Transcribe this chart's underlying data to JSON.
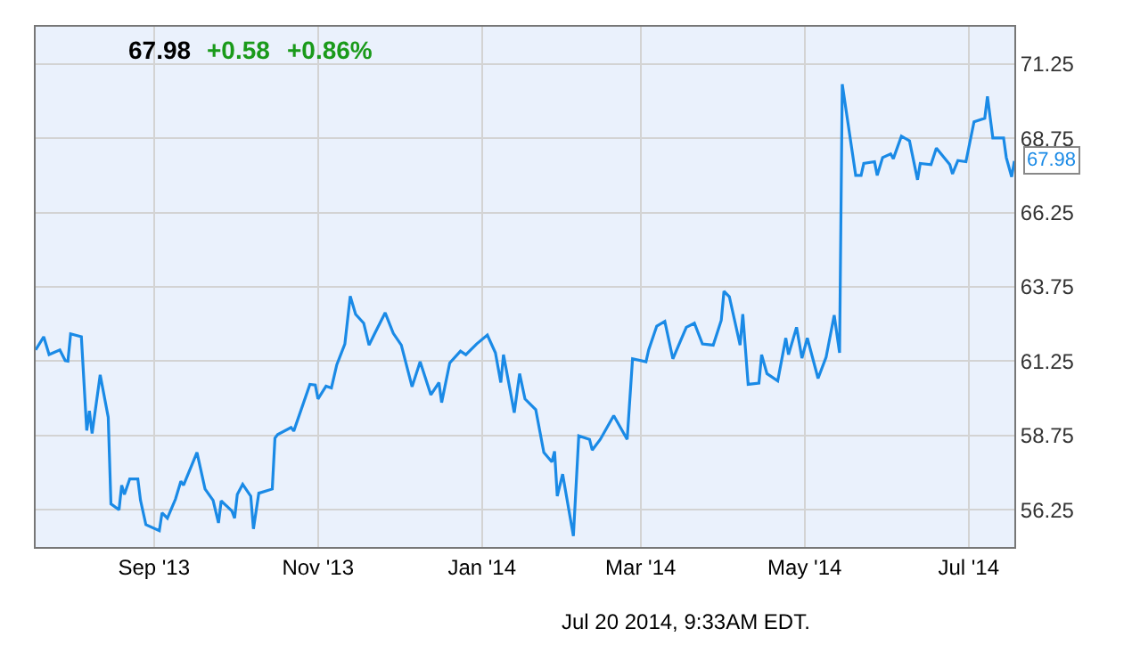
{
  "chart_data": {
    "type": "line",
    "color": "#1a8ae6",
    "grid": true,
    "xlim": [
      "2013-07-19",
      "2014-07-18"
    ],
    "xticks": [
      {
        "value": "2013-09-01",
        "label": "Sep '13"
      },
      {
        "value": "2013-11-01",
        "label": "Nov '13"
      },
      {
        "value": "2014-01-01",
        "label": "Jan '14"
      },
      {
        "value": "2014-03-01",
        "label": "Mar '14"
      },
      {
        "value": "2014-05-01",
        "label": "May '14"
      },
      {
        "value": "2014-07-01",
        "label": "Jul '14"
      }
    ],
    "ylim": [
      55,
      72.5
    ],
    "yticks": [
      56.25,
      58.75,
      61.25,
      63.75,
      66.25,
      68.75,
      71.25
    ],
    "annotations": [
      "67.98",
      "+0.58",
      "+0.86%",
      {
        "text": "67.98",
        "x": "2014-07-18",
        "y": 67.98
      },
      "Jul 20 2014, 9:33AM EDT."
    ],
    "x": [
      "2013-07-19",
      "2013-07-22",
      "2013-07-24",
      "2013-07-28",
      "2013-07-30",
      "2013-07-31",
      "2013-08-01",
      "2013-08-05",
      "2013-08-07",
      "2013-08-08",
      "2013-08-09",
      "2013-08-12",
      "2013-08-15",
      "2013-08-16",
      "2013-08-19",
      "2013-08-20",
      "2013-08-21",
      "2013-08-23",
      "2013-08-26",
      "2013-08-27",
      "2013-08-29",
      "2013-09-03",
      "2013-09-04",
      "2013-09-06",
      "2013-09-09",
      "2013-09-11",
      "2013-09-12",
      "2013-09-17",
      "2013-09-20",
      "2013-09-23",
      "2013-09-25",
      "2013-09-26",
      "2013-09-30",
      "2013-10-01",
      "2013-10-02",
      "2013-10-04",
      "2013-10-07",
      "2013-10-08",
      "2013-10-10",
      "2013-10-15",
      "2013-10-16",
      "2013-10-17",
      "2013-10-22",
      "2013-10-23",
      "2013-10-29",
      "2013-10-31",
      "2013-11-01",
      "2013-11-04",
      "2013-11-06",
      "2013-11-08",
      "2013-11-11",
      "2013-11-13",
      "2013-11-15",
      "2013-11-18",
      "2013-11-20",
      "2013-11-22",
      "2013-11-26",
      "2013-11-29",
      "2013-12-02",
      "2013-12-06",
      "2013-12-09",
      "2013-12-13",
      "2013-12-16",
      "2013-12-17",
      "2013-12-20",
      "2013-12-24",
      "2013-12-26",
      "2013-12-30",
      "2014-01-03",
      "2014-01-06",
      "2014-01-08",
      "2014-01-09",
      "2014-01-13",
      "2014-01-15",
      "2014-01-17",
      "2014-01-21",
      "2014-01-24",
      "2014-01-27",
      "2014-01-28",
      "2014-01-29",
      "2014-01-31",
      "2014-02-04",
      "2014-02-06",
      "2014-02-10",
      "2014-02-11",
      "2014-02-14",
      "2014-02-19",
      "2014-02-24",
      "2014-02-26",
      "2014-03-03",
      "2014-03-04",
      "2014-03-07",
      "2014-03-10",
      "2014-03-13",
      "2014-03-18",
      "2014-03-21",
      "2014-03-24",
      "2014-03-28",
      "2014-03-31",
      "2014-04-01",
      "2014-04-03",
      "2014-04-07",
      "2014-04-08",
      "2014-04-10",
      "2014-04-14",
      "2014-04-15",
      "2014-04-17",
      "2014-04-21",
      "2014-04-24",
      "2014-04-25",
      "2014-04-28",
      "2014-04-30",
      "2014-05-02",
      "2014-05-06",
      "2014-05-09",
      "2014-05-12",
      "2014-05-14",
      "2014-05-15",
      "2014-05-20",
      "2014-05-22",
      "2014-05-23",
      "2014-05-27",
      "2014-05-28",
      "2014-05-30",
      "2014-06-02",
      "2014-06-03",
      "2014-06-06",
      "2014-06-09",
      "2014-06-12",
      "2014-06-13",
      "2014-06-17",
      "2014-06-19",
      "2014-06-24",
      "2014-06-25",
      "2014-06-27",
      "2014-06-30",
      "2014-07-03",
      "2014-07-07",
      "2014-07-08",
      "2014-07-10",
      "2014-07-14",
      "2014-07-15",
      "2014-07-17",
      "2014-07-18"
    ],
    "values": [
      61.63,
      62.07,
      61.47,
      61.63,
      61.27,
      61.25,
      62.17,
      62.07,
      58.92,
      59.58,
      58.82,
      60.79,
      59.36,
      56.45,
      56.25,
      57.08,
      56.77,
      57.29,
      57.29,
      56.57,
      55.75,
      55.55,
      56.15,
      55.97,
      56.61,
      57.21,
      57.08,
      58.18,
      56.95,
      56.57,
      55.81,
      56.55,
      56.21,
      55.97,
      56.77,
      57.11,
      56.71,
      55.61,
      56.81,
      56.95,
      58.66,
      58.78,
      59.02,
      58.9,
      60.47,
      60.45,
      59.98,
      60.41,
      60.35,
      61.13,
      61.83,
      63.44,
      62.83,
      62.53,
      61.79,
      62.16,
      62.88,
      62.19,
      61.79,
      60.39,
      61.23,
      60.12,
      60.53,
      59.86,
      61.19,
      61.59,
      61.47,
      61.83,
      62.13,
      61.53,
      60.53,
      61.47,
      59.52,
      60.83,
      59.98,
      59.62,
      58.18,
      57.86,
      58.22,
      56.71,
      57.45,
      55.37,
      58.74,
      58.62,
      58.26,
      58.62,
      59.42,
      58.62,
      61.33,
      61.23,
      61.63,
      62.43,
      62.59,
      61.33,
      62.39,
      62.53,
      61.83,
      61.79,
      62.63,
      63.6,
      63.42,
      61.79,
      62.83,
      60.47,
      60.51,
      61.47,
      60.83,
      60.59,
      62.03,
      61.47,
      62.39,
      61.35,
      62.03,
      60.67,
      61.39,
      62.8,
      61.53,
      70.57,
      67.5,
      67.5,
      67.9,
      67.96,
      67.5,
      68.1,
      68.22,
      68.06,
      68.82,
      68.66,
      67.35,
      67.9,
      67.86,
      68.42,
      67.86,
      67.55,
      68.0,
      67.96,
      69.3,
      69.42,
      70.16,
      68.76,
      68.76,
      68.1,
      67.45,
      67.98
    ]
  }
}
